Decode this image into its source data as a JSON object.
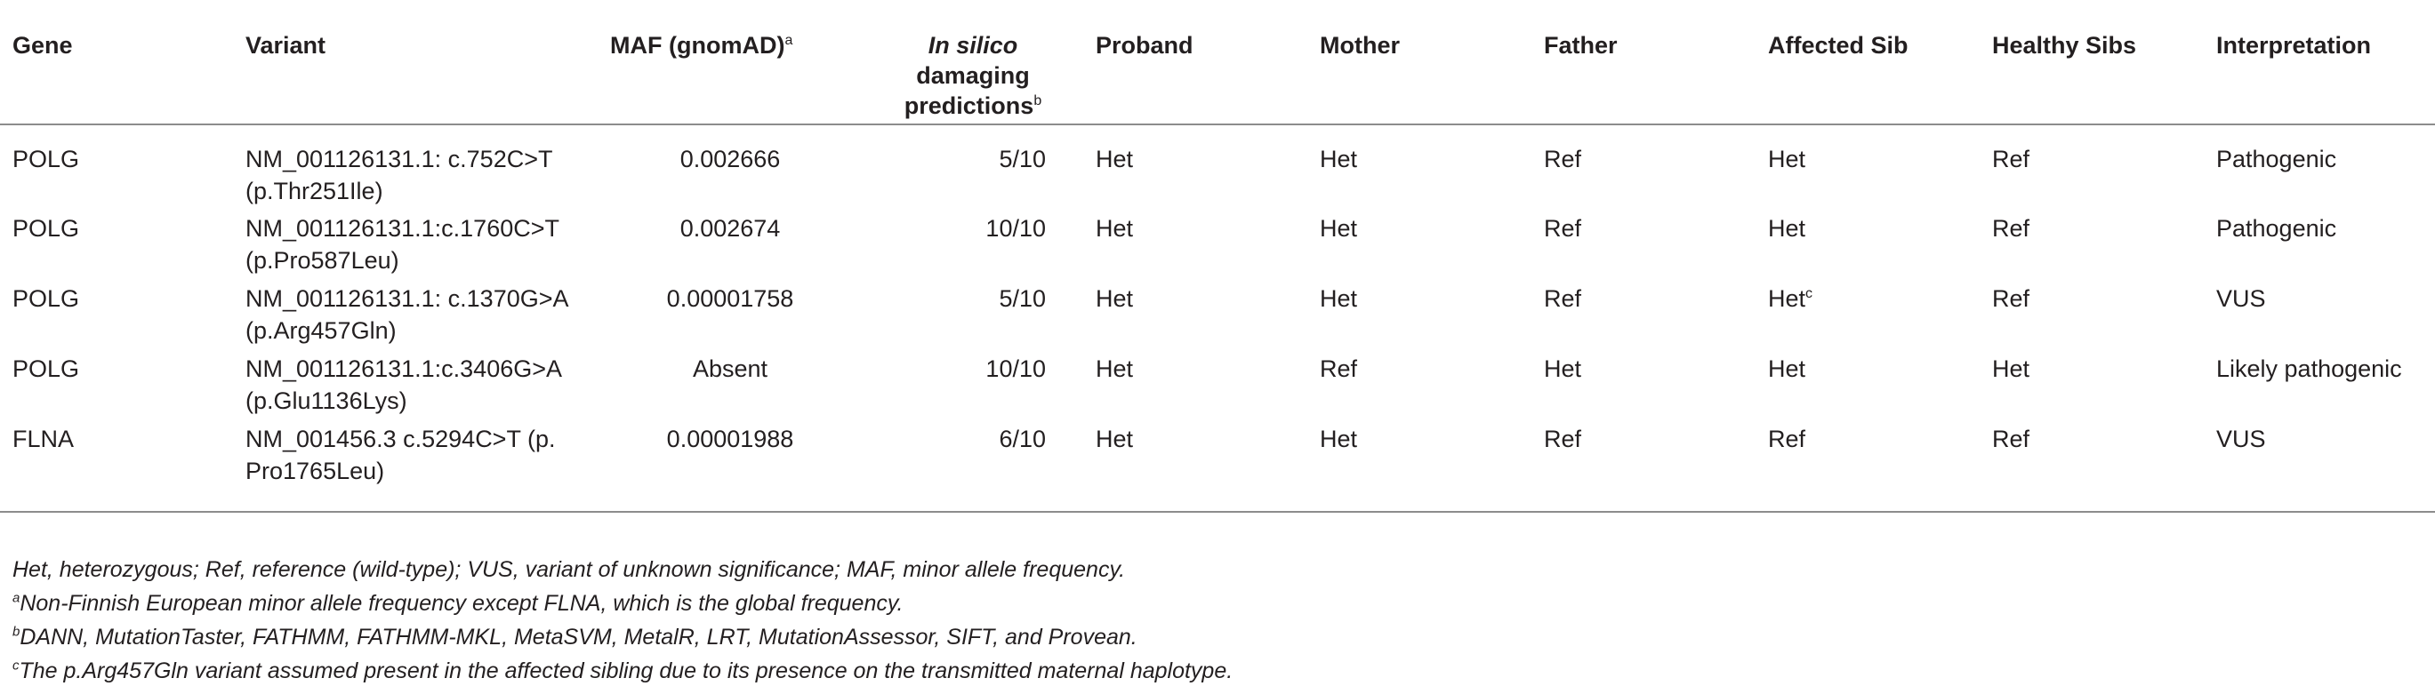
{
  "table": {
    "headers": {
      "gene": "Gene",
      "variant": "Variant",
      "maf": "MAF (gnomAD)",
      "maf_sup": "a",
      "insilico_italic": "In silico",
      "insilico_rest1": "damaging",
      "insilico_rest2": "predictions",
      "insilico_sup": "b",
      "proband": "Proband",
      "mother": "Mother",
      "father": "Father",
      "affected_sib": "Affected Sib",
      "healthy_sibs": "Healthy Sibs",
      "interpretation": "Interpretation"
    },
    "rows": [
      {
        "gene": "POLG",
        "variant_line1": "NM_001126131.1: c.752C>T",
        "variant_line2": "(p.Thr251Ile)",
        "maf": "0.002666",
        "insilico": "5/10",
        "proband": "Het",
        "mother": "Het",
        "father": "Ref",
        "affected_sib": "Het",
        "affected_sib_sup": "",
        "healthy_sibs": "Ref",
        "interpretation": "Pathogenic"
      },
      {
        "gene": "POLG",
        "variant_line1": "NM_001126131.1:c.1760C>T",
        "variant_line2": "(p.Pro587Leu)",
        "maf": "0.002674",
        "insilico": "10/10",
        "proband": "Het",
        "mother": "Het",
        "father": "Ref",
        "affected_sib": "Het",
        "affected_sib_sup": "",
        "healthy_sibs": "Ref",
        "interpretation": "Pathogenic"
      },
      {
        "gene": "POLG",
        "variant_line1": "NM_001126131.1: c.1370G>A",
        "variant_line2": "(p.Arg457Gln)",
        "maf": "0.00001758",
        "insilico": "5/10",
        "proband": "Het",
        "mother": "Het",
        "father": "Ref",
        "affected_sib": "Het",
        "affected_sib_sup": "c",
        "healthy_sibs": "Ref",
        "interpretation": "VUS"
      },
      {
        "gene": "POLG",
        "variant_line1": "NM_001126131.1:c.3406G>A",
        "variant_line2": "(p.Glu1136Lys)",
        "maf": "Absent",
        "insilico": "10/10",
        "proband": "Het",
        "mother": "Ref",
        "father": "Het",
        "affected_sib": "Het",
        "affected_sib_sup": "",
        "healthy_sibs": "Het",
        "interpretation": "Likely pathogenic"
      },
      {
        "gene": "FLNA",
        "variant_line1": "NM_001456.3 c.5294C>T (p.",
        "variant_line2": "Pro1765Leu)",
        "maf": "0.00001988",
        "insilico": "6/10",
        "proband": "Het",
        "mother": "Het",
        "father": "Ref",
        "affected_sib": "Ref",
        "affected_sib_sup": "",
        "healthy_sibs": "Ref",
        "interpretation": "VUS"
      }
    ]
  },
  "footnotes": {
    "abbrev": "Het, heterozygous; Ref, reference (wild-type); VUS, variant of unknown significance; MAF, minor allele frequency.",
    "a_mark": "a",
    "a_text": "Non-Finnish European minor allele frequency except FLNA, which is the global frequency.",
    "b_mark": "b",
    "b_text": "DANN, MutationTaster, FATHMM, FATHMM-MKL, MetaSVM, MetalR, LRT, MutationAssessor, SIFT, and Provean.",
    "c_mark": "c",
    "c_text": "The p.Arg457Gln variant assumed present in the affected sibling due to its presence on the transmitted maternal haplotype."
  }
}
